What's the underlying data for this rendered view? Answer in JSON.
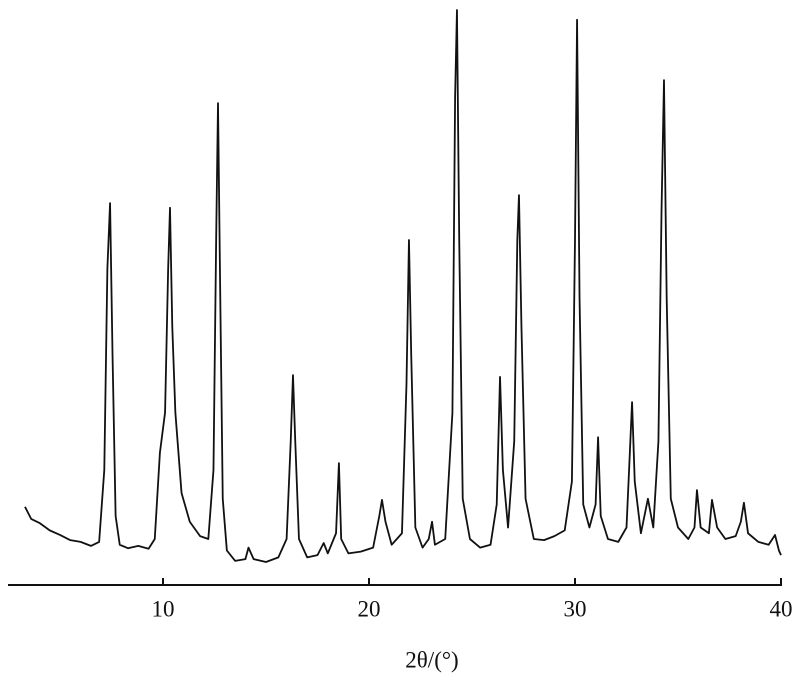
{
  "chart_data": {
    "type": "line",
    "x_label": "2θ/(°)",
    "color": "#111111",
    "xlim": [
      2.5,
      40
    ],
    "xticks": [
      10,
      20,
      30,
      40
    ],
    "ylim": [
      0,
      100
    ],
    "x": [
      3.3,
      3.6,
      4.0,
      4.5,
      5.0,
      5.5,
      6.0,
      6.5,
      6.9,
      7.15,
      7.3,
      7.43,
      7.55,
      7.7,
      7.9,
      8.3,
      8.8,
      9.3,
      9.6,
      9.85,
      10.1,
      10.25,
      10.34,
      10.45,
      10.6,
      10.9,
      11.3,
      11.8,
      12.2,
      12.45,
      12.58,
      12.67,
      12.78,
      12.9,
      13.1,
      13.5,
      14.0,
      14.15,
      14.4,
      15.0,
      15.6,
      16.0,
      16.2,
      16.31,
      16.42,
      16.6,
      17.0,
      17.5,
      17.8,
      18.0,
      18.4,
      18.54,
      18.65,
      19.0,
      19.6,
      20.2,
      20.5,
      20.63,
      20.8,
      21.1,
      21.6,
      21.82,
      21.94,
      22.05,
      22.25,
      22.6,
      22.9,
      23.06,
      23.2,
      23.7,
      24.05,
      24.18,
      24.27,
      24.38,
      24.55,
      24.9,
      25.4,
      25.9,
      26.2,
      26.36,
      26.5,
      26.75,
      27.05,
      27.2,
      27.28,
      27.4,
      27.6,
      28.0,
      28.5,
      29.0,
      29.5,
      29.85,
      30.0,
      30.1,
      30.22,
      30.4,
      30.7,
      31.0,
      31.12,
      31.25,
      31.6,
      32.1,
      32.5,
      32.65,
      32.77,
      32.9,
      33.2,
      33.54,
      33.8,
      34.05,
      34.2,
      34.32,
      34.45,
      34.65,
      35.0,
      35.5,
      35.8,
      35.92,
      36.1,
      36.5,
      36.65,
      36.9,
      37.3,
      37.8,
      38.05,
      38.2,
      38.4,
      38.9,
      39.4,
      39.71,
      39.9,
      40.0
    ],
    "values": [
      13.6,
      11.5,
      10.8,
      9.5,
      8.7,
      7.8,
      7.5,
      6.8,
      7.5,
      20,
      55,
      66.4,
      40,
      12,
      7,
      6.4,
      6.8,
      6.3,
      8,
      23,
      30,
      55,
      65.6,
      45,
      30,
      16,
      11,
      8.5,
      8,
      20,
      60,
      83.8,
      50,
      15,
      6,
      4.2,
      4.5,
      6.5,
      4.5,
      4,
      4.8,
      8,
      25,
      36.5,
      25,
      8,
      4.8,
      5.2,
      7.3,
      5.5,
      9,
      21.2,
      8,
      5.5,
      5.8,
      6.5,
      12,
      14.8,
      11,
      7,
      9,
      35,
      60,
      40,
      10,
      6.5,
      8,
      11,
      7,
      8,
      30,
      85,
      100,
      60,
      15,
      8,
      6.5,
      7,
      14,
      36.2,
      20,
      10,
      25,
      60,
      67.8,
      45,
      15,
      8,
      7.8,
      8.5,
      9.5,
      18,
      60,
      98.3,
      50,
      14,
      10,
      14,
      25.7,
      12,
      8,
      7.5,
      10,
      22,
      31.8,
      18,
      9,
      15,
      10,
      25,
      65,
      87.8,
      50,
      15,
      10,
      8,
      10,
      16.5,
      10,
      9,
      14.8,
      10,
      8,
      8.5,
      11,
      14.3,
      9,
      7.5,
      7,
      8.7,
      6,
      5.2
    ]
  }
}
